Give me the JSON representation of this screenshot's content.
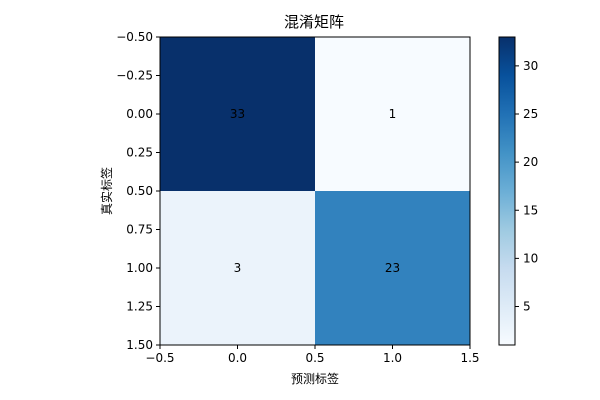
{
  "chart_data": {
    "type": "heatmap",
    "title": "混淆矩阵",
    "xlabel": "预测标签",
    "ylabel": "真实标签",
    "matrix": [
      [
        33,
        1
      ],
      [
        3,
        23
      ]
    ],
    "cell_labels": [
      [
        "33",
        "1"
      ],
      [
        "3",
        "23"
      ]
    ],
    "x_ticks": [
      "−0.5",
      "0.0",
      "0.5",
      "1.0",
      "1.5"
    ],
    "y_ticks": [
      "−0.50",
      "−0.25",
      "0.00",
      "0.25",
      "0.50",
      "0.75",
      "1.00",
      "1.25",
      "1.50"
    ],
    "x_tick_values": [
      -0.5,
      0.0,
      0.5,
      1.0,
      1.5
    ],
    "y_tick_values": [
      -0.5,
      -0.25,
      0.0,
      0.25,
      0.5,
      0.75,
      1.0,
      1.25,
      1.5
    ],
    "xlim": [
      -0.5,
      1.5
    ],
    "ylim": [
      1.5,
      -0.5
    ],
    "colormap": "Blues",
    "color_range": [
      1,
      33
    ],
    "colorbar_ticks": [
      "5",
      "10",
      "15",
      "20",
      "25",
      "30"
    ],
    "colorbar_tick_values": [
      5,
      10,
      15,
      20,
      25,
      30
    ],
    "colorbar_position": "right",
    "colors": {
      "low": "#f7fbff",
      "high": "#08306b",
      "text_on_light": "#000000",
      "text_on_dark": "#ffffff"
    }
  }
}
